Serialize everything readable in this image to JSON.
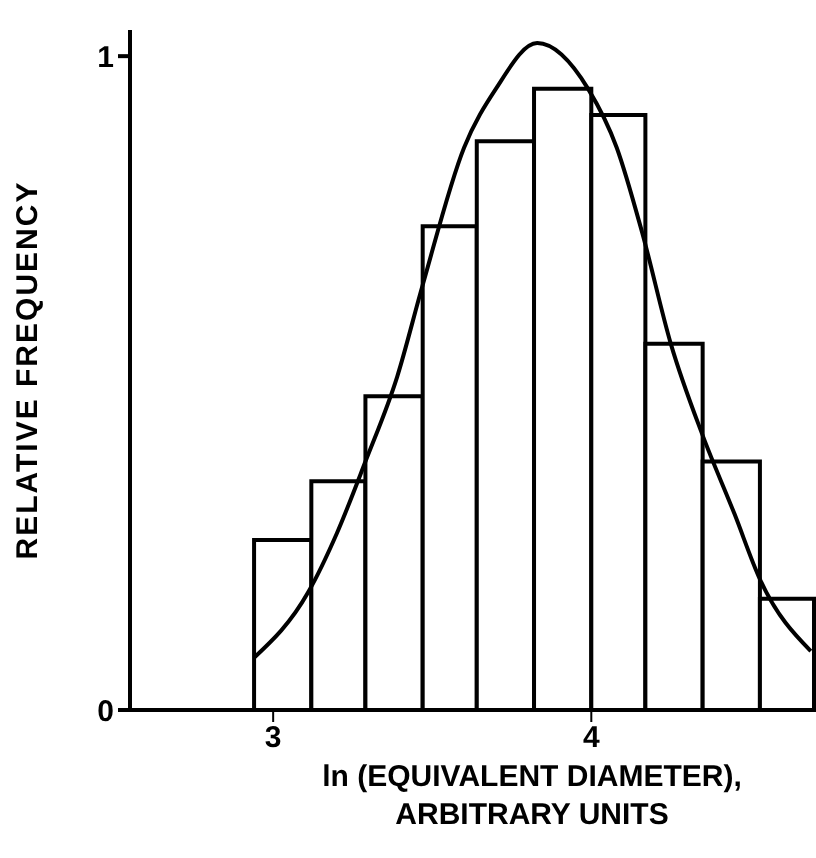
{
  "chart_data": {
    "type": "histogram",
    "xlabel": "ln (EQUIVALENT DIAMETER),\nARBITRARY UNITS",
    "ylabel": "RELATIVE FREQUENCY",
    "bins": [
      2.94,
      3.12,
      3.29,
      3.47,
      3.64,
      3.82,
      4.0,
      4.17,
      4.35,
      4.53,
      4.7
    ],
    "values": [
      0.26,
      0.35,
      0.48,
      0.74,
      0.87,
      0.95,
      0.91,
      0.56,
      0.38,
      0.17
    ],
    "color": "#000000",
    "series": [
      {
        "type": "line",
        "color": "#000000",
        "x": [
          2.94,
          3.11,
          3.2,
          3.29,
          3.39,
          3.47,
          3.6,
          3.7,
          3.83,
          3.99,
          4.08,
          4.16,
          4.25,
          4.35,
          4.45,
          4.53,
          4.69
        ],
        "values": [
          0.08,
          0.18,
          0.27,
          0.38,
          0.51,
          0.65,
          0.86,
          0.95,
          1.02,
          0.95,
          0.86,
          0.73,
          0.56,
          0.42,
          0.3,
          0.2,
          0.09
        ]
      }
    ],
    "xlim": [
      2.55,
      4.7
    ],
    "xticks": [
      3,
      4
    ],
    "ylim": [
      0,
      1.04
    ],
    "yticks": [
      0,
      1
    ],
    "grid": false,
    "legend": false,
    "marker": "none",
    "line_style": "solid"
  }
}
